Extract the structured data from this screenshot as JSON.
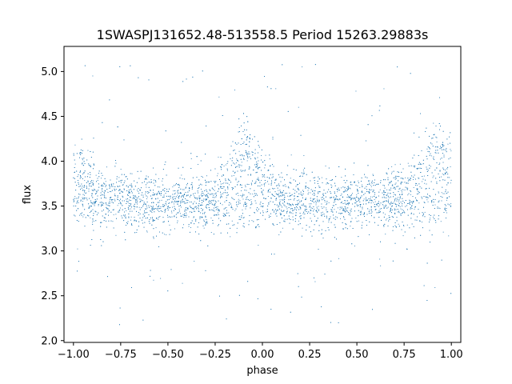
{
  "chart_data": {
    "type": "scatter",
    "title": "1SWASPJ131652.48-513558.5 Period 15263.29883s",
    "xlabel": "phase",
    "ylabel": "flux",
    "xlim": [
      -1.05,
      1.05
    ],
    "ylim": [
      1.98,
      5.28
    ],
    "x_ticks": [
      -1.0,
      -0.75,
      -0.5,
      -0.25,
      0.0,
      0.25,
      0.5,
      0.75,
      1.0
    ],
    "x_tick_labels": [
      "−1.00",
      "−0.75",
      "−0.50",
      "−0.25",
      "0.00",
      "0.25",
      "0.50",
      "0.75",
      "1.00"
    ],
    "y_ticks": [
      2.0,
      2.5,
      3.0,
      3.5,
      4.0,
      4.5,
      5.0
    ],
    "y_tick_labels": [
      "2.0",
      "2.5",
      "3.0",
      "3.5",
      "4.0",
      "4.5",
      "5.0"
    ],
    "grid": false,
    "marker_color": "#1f77b4",
    "x_range": [
      -1.0,
      1.0
    ],
    "baseline_flux": 3.55,
    "bumps": [
      {
        "center_phase": -0.08,
        "peak_flux": 4.1
      },
      {
        "center_phase": 0.92,
        "peak_flux": 4.1
      },
      {
        "center_phase": -1.0,
        "peak_flux": 3.9
      }
    ]
  }
}
